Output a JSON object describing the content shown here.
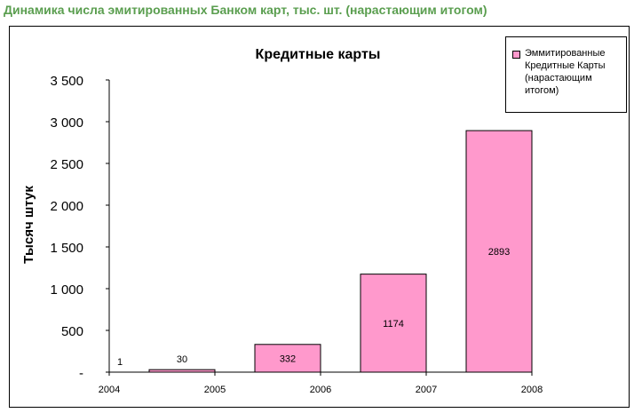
{
  "page_heading": "Динамика числа эмитированных Банком карт, тыс. шт. (нарастающим итогом)",
  "colors": {
    "heading": "#5a9e4f",
    "bar_fill": "#ff99cc",
    "bar_stroke": "#000000"
  },
  "chart_data": {
    "type": "bar",
    "title": "Кредитные карты",
    "xlabel": "",
    "ylabel": "Тысяч штук",
    "categories": [
      "2004",
      "2005",
      "2006",
      "2007",
      "2008"
    ],
    "series": [
      {
        "name": "Эммитированные Кредитные Карты (нарастающим итогом)",
        "values": [
          1,
          30,
          332,
          1174,
          2893
        ]
      }
    ],
    "data_labels": [
      "1",
      "30",
      "332",
      "1174",
      "2893"
    ],
    "ylim": [
      0,
      3500
    ],
    "yticks": [
      0,
      500,
      1000,
      1500,
      2000,
      2500,
      3000,
      3500
    ],
    "ytick_labels": [
      "-",
      "500",
      "1 000",
      "1 500",
      "2 000",
      "2 500",
      "3 000",
      "3 500"
    ],
    "grid": false,
    "legend_position": "top-right"
  }
}
